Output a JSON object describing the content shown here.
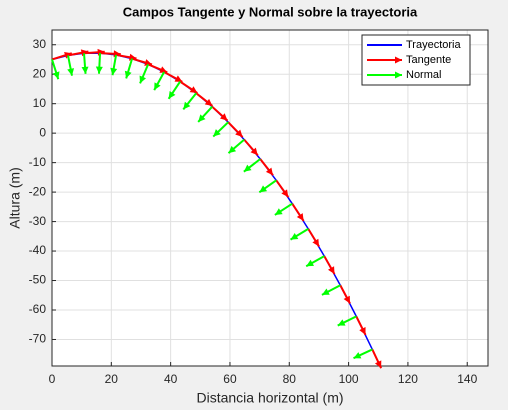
{
  "chart_data": {
    "type": "quiver",
    "title": "Campos Tangente y Normal sobre la trayectoria",
    "xlabel": "Distancia horizontal (m)",
    "ylabel": "Altura (m)",
    "xlim": [
      0,
      147
    ],
    "ylim": [
      -79,
      35
    ],
    "xticks": [
      0,
      20,
      40,
      60,
      80,
      100,
      120,
      140
    ],
    "yticks": [
      -70,
      -60,
      -50,
      -40,
      -30,
      -20,
      -10,
      0,
      10,
      20,
      30
    ],
    "grid": true,
    "legend": "upper right",
    "series": [
      {
        "name": "Trayectoria",
        "color": "#0000ff",
        "x": [
          0,
          5.4,
          10.8,
          16.2,
          21.6,
          27,
          32.4,
          37.8,
          43.2,
          48.6,
          54,
          59.4,
          64.8,
          70.2,
          75.6,
          81,
          86.4,
          91.8,
          97.2,
          102.6,
          108
        ],
        "y": [
          25,
          26.38,
          27.1,
          27.16,
          26.55,
          25.28,
          23.35,
          20.75,
          17.49,
          13.56,
          8.98,
          3.72,
          -2.19,
          -8.77,
          -16.01,
          -23.92,
          -32.48,
          -41.71,
          -51.61,
          -62.17,
          -73.39
        ]
      },
      {
        "name": "Tangente",
        "color": "#ff0000",
        "u": [
          6.672,
          6.871,
          6.982,
          6.991,
          6.896,
          6.711,
          6.455,
          6.153,
          5.828,
          5.497,
          5.175,
          4.867,
          4.578,
          4.31,
          4.064,
          3.838,
          3.631,
          3.442,
          3.269,
          3.11,
          2.964
        ],
        "v": [
          2.118,
          1.338,
          0.501,
          -0.357,
          -1.199,
          -1.992,
          -2.708,
          -3.338,
          -3.877,
          -4.333,
          -4.714,
          -5.032,
          -5.295,
          -5.516,
          -5.7,
          -5.854,
          -5.984,
          -6.096,
          -6.19,
          -6.272,
          -6.342
        ]
      },
      {
        "name": "Normal",
        "color": "#00ff00",
        "u": [
          2.118,
          1.338,
          0.501,
          -0.357,
          -1.199,
          -1.992,
          -2.708,
          -3.338,
          -3.877,
          -4.333,
          -4.714,
          -5.032,
          -5.295,
          -5.516,
          -5.7,
          -5.854,
          -5.984,
          -6.096,
          -6.19,
          -6.272,
          -6.342
        ],
        "v": [
          -6.672,
          -6.871,
          -6.982,
          -6.991,
          -6.896,
          -6.711,
          -6.455,
          -6.153,
          -5.828,
          -5.497,
          -5.175,
          -4.867,
          -4.578,
          -4.31,
          -4.064,
          -3.838,
          -3.631,
          -3.442,
          -3.269,
          -3.11,
          -2.964
        ]
      }
    ]
  }
}
